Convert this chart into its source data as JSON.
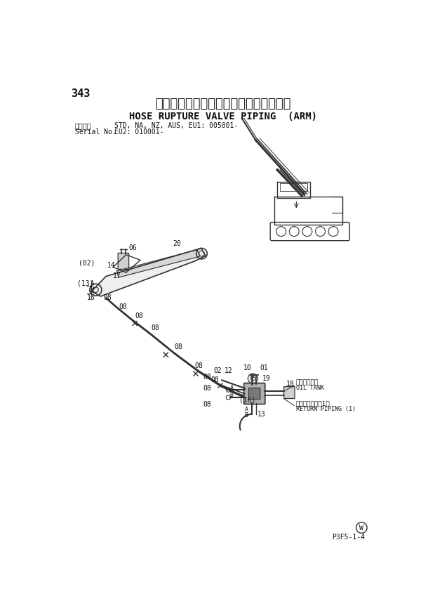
{
  "page_number": "343",
  "title_jp": "ホースラプチャーバルブ配管（アーム）",
  "title_en": "HOSE RUPTURE VALVE PIPING  (ARM)",
  "serial_label": "適用号機",
  "serial_en": "Serial No.",
  "serial_info_line1": "STD, NA, NZ, AUS, EU1: 005001-",
  "serial_info_line2": "EU2: 010001-",
  "footer_code": "P3F5-1-4",
  "bg_color": "#ffffff",
  "line_color": "#333333",
  "text_color": "#111111"
}
